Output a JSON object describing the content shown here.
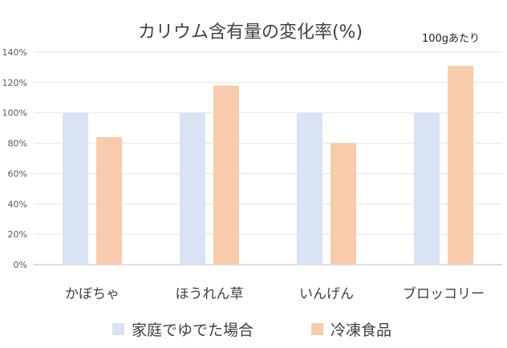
{
  "chart_data": {
    "type": "bar",
    "title": "カリウム含有量の変化率(%)",
    "subtitle": "100gあたり",
    "categories": [
      "かぼちゃ",
      "ほうれん草",
      "いんげん",
      "ブロッコリー"
    ],
    "series": [
      {
        "name": "家庭でゆでた場合",
        "values": [
          100,
          100,
          100,
          100
        ],
        "color": "#dae3f3"
      },
      {
        "name": "冷凍食品",
        "values": [
          84,
          118,
          80,
          131
        ],
        "color": "#f8cbad"
      }
    ],
    "y_ticks": [
      "0%",
      "20%",
      "40%",
      "60%",
      "80%",
      "100%",
      "120%",
      "140%"
    ],
    "ylim": [
      0,
      140
    ],
    "grid": true,
    "legend": "bottom"
  }
}
